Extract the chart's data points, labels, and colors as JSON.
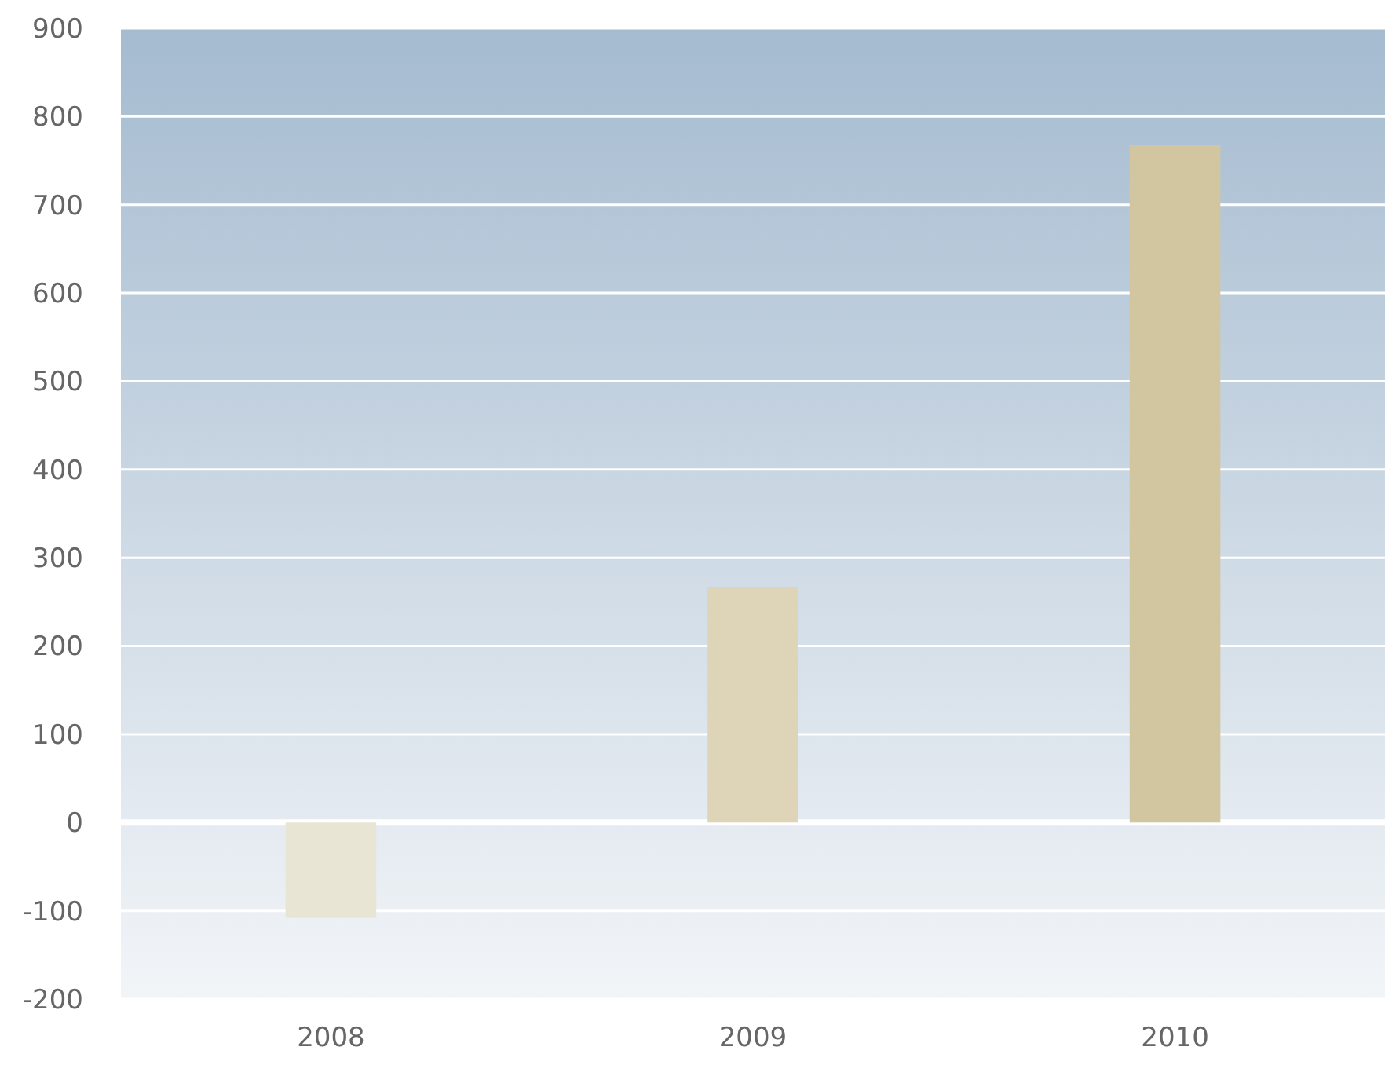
{
  "chart_data": {
    "type": "bar",
    "categories": [
      "2008",
      "2009",
      "2010"
    ],
    "values": [
      -108,
      267,
      768
    ],
    "colors": [
      "#e9e5d5",
      "#ded5b8",
      "#d1c6a0"
    ],
    "ylim": [
      -200,
      900
    ],
    "yticks": [
      -200,
      -100,
      0,
      100,
      200,
      300,
      400,
      500,
      600,
      700,
      800,
      900
    ],
    "grid": "y"
  }
}
